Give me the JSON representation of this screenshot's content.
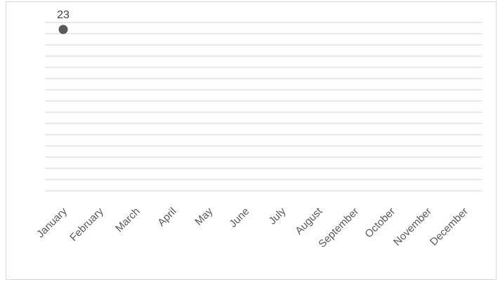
{
  "chart_data": {
    "type": "scatter",
    "title": "",
    "xlabel": "",
    "ylabel": "",
    "categories": [
      "January",
      "February",
      "March",
      "April",
      "May",
      "June",
      "July",
      "August",
      "September",
      "October",
      "November",
      "December"
    ],
    "series": [
      {
        "values": [
          23,
          null,
          null,
          null,
          null,
          null,
          null,
          null,
          null,
          null,
          null,
          null
        ]
      }
    ],
    "data_labels": [
      "23"
    ],
    "ylim": [
      0,
      24
    ],
    "gridlines": 16,
    "grid": true,
    "legend": "none",
    "colors": {
      "marker": "#595959",
      "grid": "#d9d9d9",
      "text": "#595959"
    }
  }
}
